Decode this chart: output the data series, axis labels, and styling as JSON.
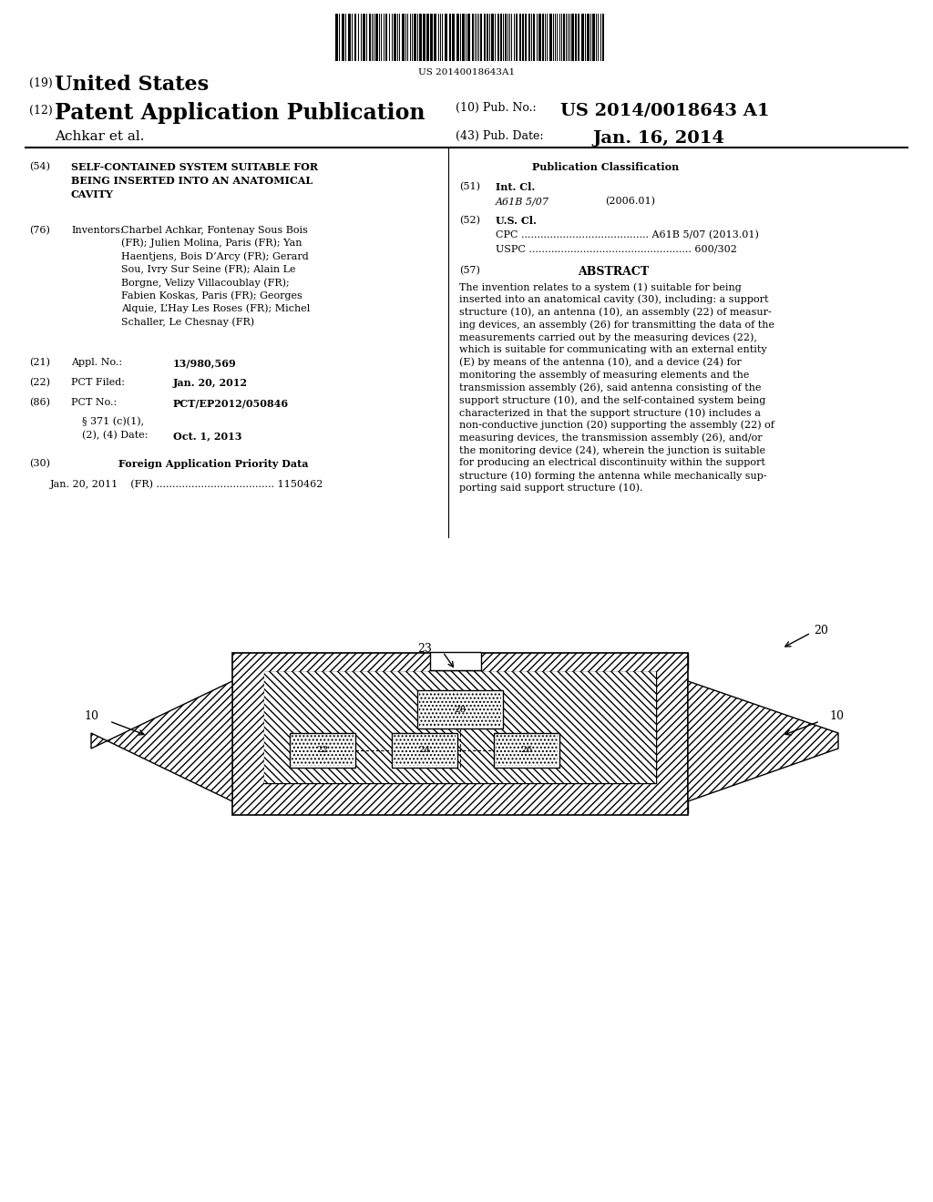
{
  "bg_color": "#ffffff",
  "barcode_text": "US 20140018643A1",
  "title_19": "(19) United States",
  "title_12": "(12) Patent Application Publication",
  "pub_no_label": "(10) Pub. No.:",
  "pub_no_value": "US 2014/0018643 A1",
  "author": "Achkar et al.",
  "pub_date_label": "(43) Pub. Date:",
  "pub_date_value": "Jan. 16, 2014",
  "section54_title": "SELF-CONTAINED SYSTEM SUITABLE FOR\nBEING INSERTED INTO AN ANATOMICAL\nCAVITY",
  "section76_content": "Charbel Achkar, Fontenay Sous Bois\n(FR); Julien Molina, Paris (FR); Yan\nHaentjens, Bois D’Arcy (FR); Gerard\nSou, Ivry Sur Seine (FR); Alain Le\nBorgne, Velizy Villacoublay (FR);\nFabien Koskas, Paris (FR); Georges\nAlquie, L’Hay Les Roses (FR); Michel\nSchaller, Le Chesnay (FR)",
  "section21_value": "13/980,569",
  "section22_value": "Jan. 20, 2012",
  "section86_value": "PCT/EP2012/050846",
  "section86b_value": "Oct. 1, 2013",
  "section30_content": "Jan. 20, 2011    (FR) ...................................... 1150462",
  "section51_italic": "A61B 5/07",
  "section51_year": "(2006.01)",
  "section52_cpc": "CPC ........................................ A61B 5/07 (2013.01)",
  "section52_uspc": "USPC ..................................................... 600/302",
  "abstract_text": "The invention relates to a system (1) suitable for being inserted into an anatomical cavity (30), including: a support structure (10), an antenna (10), an assembly (22) of measuring devices, an assembly (26) for transmitting the data of the measurements carried out by the measuring devices (22), which is suitable for communicating with an external entity (E) by means of the antenna (10), and a device (24) for monitoring the assembly of measuring elements and the transmission assembly (26), said antenna consisting of the support structure (10), and the self-contained system being characterized in that the support structure (10) includes a non-conductive junction (20) supporting the assembly (22) of measuring devices, the transmission assembly (26), and/or the monitoring device (24), wherein the junction is suitable for producing an electrical discontinuity within the support structure (10) forming the antenna while mechanically supporting said support structure (10)."
}
